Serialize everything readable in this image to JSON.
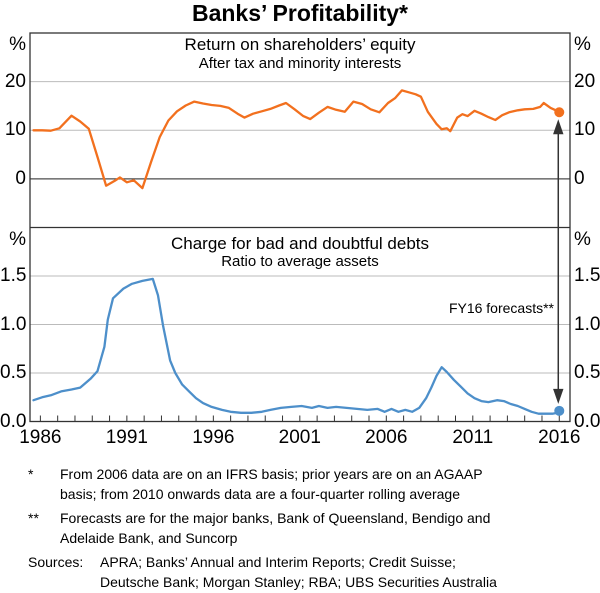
{
  "title": "Banks’ Profitability*",
  "colors": {
    "roe_line": "#F2701E",
    "bad_debts_line": "#4D8FCA",
    "grid": "#BBBBBB",
    "axis": "#333333",
    "zero_line": "#4D4D4D",
    "arrow": "#333333",
    "text": "#000000"
  },
  "x_axis": {
    "range": [
      1985.4,
      2016.62
    ],
    "tick_start": 1986,
    "tick_end": 2016,
    "tick_step": 1,
    "label_years": [
      1986,
      1991,
      1996,
      2001,
      2006,
      2011,
      2016
    ]
  },
  "annotation": {
    "text": "FY16 forecasts**"
  },
  "chart_data": [
    {
      "type": "line",
      "panel": "top",
      "title": "Return on shareholders’ equity",
      "subtitle": "After tax and minority interests",
      "unit": "%",
      "ylim": [
        -10,
        30
      ],
      "yticks": [
        0,
        10,
        20
      ],
      "ytick_labels": [
        "0",
        "10",
        "20"
      ],
      "grid": true,
      "series": [
        {
          "id": "roe",
          "name": "Return on shareholders’ equity",
          "color": "#F2701E",
          "points": [
            [
              1985.6,
              10.0
            ],
            [
              1986.1,
              10.0
            ],
            [
              1986.6,
              9.9
            ],
            [
              1987.1,
              10.4
            ],
            [
              1987.8,
              13.0
            ],
            [
              1988.3,
              11.8
            ],
            [
              1988.8,
              10.3
            ],
            [
              1989.3,
              4.5
            ],
            [
              1989.8,
              -1.4
            ],
            [
              1990.3,
              -0.4
            ],
            [
              1990.6,
              0.3
            ],
            [
              1991.0,
              -0.7
            ],
            [
              1991.4,
              -0.3
            ],
            [
              1991.9,
              -1.9
            ],
            [
              1992.4,
              3.5
            ],
            [
              1992.9,
              8.6
            ],
            [
              1993.4,
              12.0
            ],
            [
              1993.9,
              13.9
            ],
            [
              1994.4,
              15.1
            ],
            [
              1994.9,
              15.9
            ],
            [
              1995.4,
              15.5
            ],
            [
              1995.9,
              15.2
            ],
            [
              1996.4,
              15.0
            ],
            [
              1996.9,
              14.6
            ],
            [
              1997.4,
              13.4
            ],
            [
              1997.8,
              12.6
            ],
            [
              1998.3,
              13.4
            ],
            [
              1998.8,
              13.9
            ],
            [
              1999.3,
              14.4
            ],
            [
              1999.8,
              15.1
            ],
            [
              2000.2,
              15.6
            ],
            [
              2000.7,
              14.3
            ],
            [
              2001.2,
              12.9
            ],
            [
              2001.6,
              12.3
            ],
            [
              2002.1,
              13.6
            ],
            [
              2002.6,
              14.8
            ],
            [
              2003.1,
              14.2
            ],
            [
              2003.6,
              13.8
            ],
            [
              2004.1,
              15.9
            ],
            [
              2004.6,
              15.4
            ],
            [
              2005.1,
              14.3
            ],
            [
              2005.6,
              13.7
            ],
            [
              2006.1,
              15.6
            ],
            [
              2006.5,
              16.6
            ],
            [
              2006.9,
              18.2
            ],
            [
              2007.3,
              17.8
            ],
            [
              2007.7,
              17.4
            ],
            [
              2008.0,
              16.9
            ],
            [
              2008.4,
              13.8
            ],
            [
              2008.9,
              11.3
            ],
            [
              2009.2,
              10.2
            ],
            [
              2009.5,
              10.4
            ],
            [
              2009.7,
              9.8
            ],
            [
              2010.1,
              12.6
            ],
            [
              2010.4,
              13.3
            ],
            [
              2010.7,
              12.9
            ],
            [
              2011.1,
              14.0
            ],
            [
              2011.5,
              13.4
            ],
            [
              2011.9,
              12.7
            ],
            [
              2012.3,
              12.1
            ],
            [
              2012.7,
              13.1
            ],
            [
              2013.1,
              13.7
            ],
            [
              2013.6,
              14.1
            ],
            [
              2014.0,
              14.3
            ],
            [
              2014.5,
              14.4
            ],
            [
              2014.9,
              14.8
            ],
            [
              2015.1,
              15.6
            ],
            [
              2015.5,
              14.6
            ],
            [
              2015.8,
              14.1
            ]
          ]
        }
      ],
      "forecast_point": {
        "x": 2016,
        "y": 13.7,
        "color": "#F2701E",
        "label": "FY16 forecast"
      }
    },
    {
      "type": "line",
      "panel": "bottom",
      "title": "Charge for bad and doubtful debts",
      "subtitle": "Ratio to average assets",
      "unit": "%",
      "ylim": [
        0,
        2
      ],
      "yticks": [
        0,
        0.5,
        1.0,
        1.5
      ],
      "ytick_labels": [
        "0.0",
        "0.5",
        "1.0",
        "1.5"
      ],
      "grid": true,
      "series": [
        {
          "id": "bad_debts",
          "name": "Charge for bad and doubtful debts",
          "color": "#4D8FCA",
          "points": [
            [
              1985.6,
              0.22
            ],
            [
              1986.1,
              0.25
            ],
            [
              1986.6,
              0.27
            ],
            [
              1987.2,
              0.31
            ],
            [
              1987.8,
              0.33
            ],
            [
              1988.3,
              0.35
            ],
            [
              1988.9,
              0.44
            ],
            [
              1989.3,
              0.52
            ],
            [
              1989.7,
              0.77
            ],
            [
              1989.9,
              1.05
            ],
            [
              1990.2,
              1.27
            ],
            [
              1990.8,
              1.37
            ],
            [
              1991.3,
              1.42
            ],
            [
              1991.9,
              1.45
            ],
            [
              1992.5,
              1.47
            ],
            [
              1992.8,
              1.3
            ],
            [
              1993.1,
              0.98
            ],
            [
              1993.5,
              0.63
            ],
            [
              1993.8,
              0.5
            ],
            [
              1994.2,
              0.38
            ],
            [
              1994.6,
              0.31
            ],
            [
              1995.0,
              0.24
            ],
            [
              1995.4,
              0.19
            ],
            [
              1995.9,
              0.15
            ],
            [
              1996.5,
              0.12
            ],
            [
              1997.0,
              0.1
            ],
            [
              1997.6,
              0.09
            ],
            [
              1998.2,
              0.09
            ],
            [
              1998.8,
              0.1
            ],
            [
              1999.3,
              0.12
            ],
            [
              1999.9,
              0.14
            ],
            [
              2000.5,
              0.15
            ],
            [
              2001.1,
              0.16
            ],
            [
              2001.7,
              0.14
            ],
            [
              2002.1,
              0.16
            ],
            [
              2002.6,
              0.14
            ],
            [
              2003.1,
              0.15
            ],
            [
              2003.7,
              0.14
            ],
            [
              2004.3,
              0.13
            ],
            [
              2004.9,
              0.12
            ],
            [
              2005.5,
              0.13
            ],
            [
              2005.9,
              0.1
            ],
            [
              2006.3,
              0.13
            ],
            [
              2006.7,
              0.1
            ],
            [
              2007.1,
              0.12
            ],
            [
              2007.5,
              0.1
            ],
            [
              2007.9,
              0.14
            ],
            [
              2008.3,
              0.24
            ],
            [
              2008.6,
              0.35
            ],
            [
              2008.9,
              0.47
            ],
            [
              2009.2,
              0.56
            ],
            [
              2009.5,
              0.51
            ],
            [
              2009.9,
              0.43
            ],
            [
              2010.3,
              0.36
            ],
            [
              2010.7,
              0.29
            ],
            [
              2011.1,
              0.24
            ],
            [
              2011.5,
              0.21
            ],
            [
              2011.9,
              0.2
            ],
            [
              2012.4,
              0.22
            ],
            [
              2012.8,
              0.21
            ],
            [
              2013.2,
              0.18
            ],
            [
              2013.6,
              0.16
            ],
            [
              2014.0,
              0.13
            ],
            [
              2014.4,
              0.1
            ],
            [
              2014.8,
              0.08
            ],
            [
              2015.2,
              0.08
            ],
            [
              2015.6,
              0.08
            ],
            [
              2015.9,
              0.09
            ]
          ]
        }
      ],
      "forecast_point": {
        "x": 2016,
        "y": 0.11,
        "color": "#4D8FCA",
        "label": "FY16 forecast"
      }
    }
  ],
  "footnotes": [
    {
      "marker": "*",
      "lines": [
        "From 2006 data are on an IFRS basis; prior years are on an AGAAP",
        "basis; from 2010 onwards data are a four-quarter rolling average"
      ]
    },
    {
      "marker": "**",
      "lines": [
        "Forecasts are for the major banks, Bank of Queensland, Bendigo and",
        "Adelaide Bank, and Suncorp"
      ]
    },
    {
      "marker": "Sources:",
      "lines": [
        "APRA; Banks’ Annual and Interim Reports; Credit Suisse;",
        "Deutsche Bank; Morgan Stanley; RBA; UBS Securities Australia"
      ]
    }
  ]
}
